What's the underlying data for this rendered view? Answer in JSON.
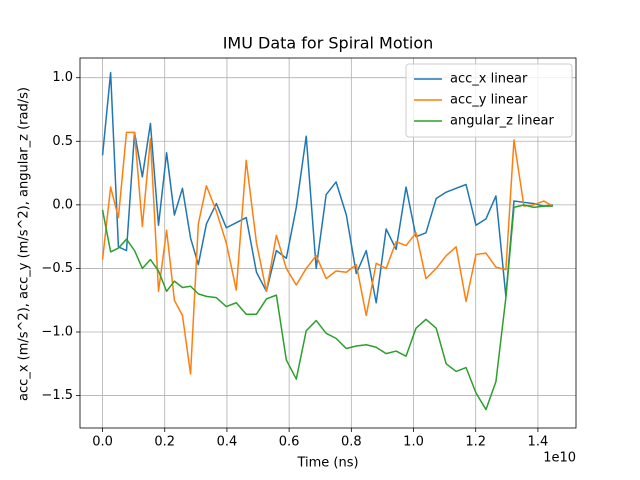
{
  "chart_data": {
    "type": "line",
    "title": "IMU Data for Spiral Motion",
    "x_label": "Time (ns)",
    "y_label": "acc_x (m/s^2), acc_y (m/s^2), angular_z (rad/s)",
    "x_offset_label": "1e10",
    "x": [
      0,
      0.026,
      0.051,
      0.077,
      0.103,
      0.128,
      0.154,
      0.18,
      0.206,
      0.231,
      0.257,
      0.283,
      0.308,
      0.334,
      0.366,
      0.398,
      0.43,
      0.462,
      0.495,
      0.527,
      0.559,
      0.591,
      0.623,
      0.655,
      0.687,
      0.719,
      0.751,
      0.784,
      0.816,
      0.848,
      0.88,
      0.912,
      0.944,
      0.976,
      1.008,
      1.04,
      1.073,
      1.105,
      1.137,
      1.169,
      1.201,
      1.233,
      1.265,
      1.297,
      1.323,
      1.355,
      1.387,
      1.419,
      1.448
    ],
    "series": [
      {
        "name": "acc_x linear",
        "color": "#1f77b4",
        "values": [
          0.39,
          1.04,
          -0.33,
          -0.36,
          0.57,
          0.22,
          0.64,
          -0.16,
          0.41,
          -0.08,
          0.13,
          -0.26,
          -0.47,
          -0.15,
          0.01,
          -0.18,
          -0.14,
          -0.1,
          -0.53,
          -0.68,
          -0.36,
          -0.42,
          -0.02,
          0.54,
          -0.5,
          0.08,
          0.18,
          -0.08,
          -0.54,
          -0.36,
          -0.77,
          -0.19,
          -0.35,
          0.14,
          -0.25,
          -0.22,
          0.05,
          0.1,
          0.13,
          0.16,
          -0.16,
          -0.11,
          0.07,
          -0.72,
          0.03,
          0.02,
          0.01,
          -0.01,
          0.0
        ]
      },
      {
        "name": "acc_y linear",
        "color": "#ff7f0e",
        "values": [
          -0.43,
          0.14,
          -0.1,
          0.57,
          0.57,
          -0.17,
          0.52,
          -0.68,
          -0.2,
          -0.75,
          -0.87,
          -1.33,
          -0.15,
          0.15,
          -0.05,
          -0.3,
          -0.67,
          0.35,
          -0.3,
          -0.68,
          -0.24,
          -0.5,
          -0.63,
          -0.5,
          -0.4,
          -0.58,
          -0.52,
          -0.53,
          -0.47,
          -0.87,
          -0.46,
          -0.5,
          -0.29,
          -0.32,
          -0.22,
          -0.58,
          -0.5,
          -0.4,
          -0.33,
          -0.76,
          -0.39,
          -0.38,
          -0.49,
          -0.51,
          0.51,
          -0.01,
          0.0,
          0.03,
          -0.01
        ]
      },
      {
        "name": "angular_z linear",
        "color": "#2ca02c",
        "values": [
          -0.04,
          -0.37,
          -0.34,
          -0.27,
          -0.36,
          -0.5,
          -0.43,
          -0.52,
          -0.68,
          -0.6,
          -0.65,
          -0.64,
          -0.7,
          -0.72,
          -0.73,
          -0.8,
          -0.77,
          -0.86,
          -0.86,
          -0.74,
          -0.71,
          -1.22,
          -1.37,
          -0.99,
          -0.91,
          -1.01,
          -1.05,
          -1.13,
          -1.11,
          -1.1,
          -1.12,
          -1.17,
          -1.15,
          -1.19,
          -0.97,
          -0.9,
          -0.97,
          -1.25,
          -1.31,
          -1.28,
          -1.48,
          -1.61,
          -1.39,
          -0.73,
          -0.02,
          0.0,
          -0.02,
          -0.01,
          -0.01
        ]
      }
    ],
    "xlim": [
      -0.0725,
      1.5225
    ],
    "ylim": [
      -1.755,
      1.155
    ],
    "xticks": [
      {
        "value": 0,
        "label": "0.0"
      },
      {
        "value": 0.2,
        "label": "0.2"
      },
      {
        "value": 0.4,
        "label": "0.4"
      },
      {
        "value": 0.6,
        "label": "0.6"
      },
      {
        "value": 0.8,
        "label": "0.8"
      },
      {
        "value": 1.0,
        "label": "1.0"
      },
      {
        "value": 1.2,
        "label": "1.2"
      },
      {
        "value": 1.4,
        "label": "1.4"
      }
    ],
    "yticks": [
      {
        "value": -1.5,
        "label": "−1.5"
      },
      {
        "value": -1.0,
        "label": "−1.0"
      },
      {
        "value": -0.5,
        "label": "−0.5"
      },
      {
        "value": 0,
        "label": "0.0"
      },
      {
        "value": 0.5,
        "label": "0.5"
      },
      {
        "value": 1.0,
        "label": "1.0"
      }
    ],
    "grid": true,
    "legend": "upper right"
  }
}
